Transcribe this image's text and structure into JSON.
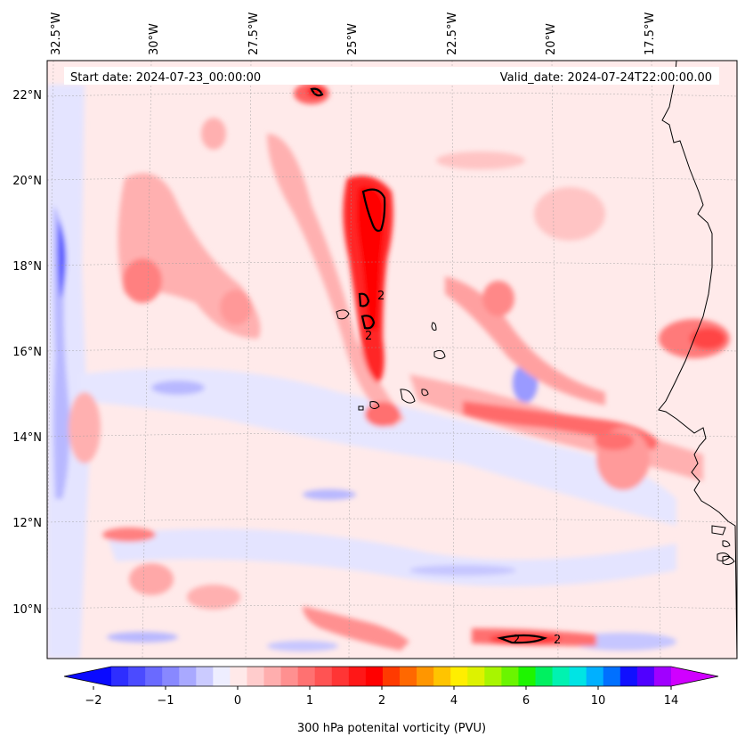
{
  "header": {
    "start_date": "Start date: 2024-07-23_00:00:00",
    "valid_date": "Valid_date: 2024-07-24T22:00:00.00"
  },
  "axes": {
    "longitude_labels": [
      "32.5°W",
      "30°W",
      "27.5°W",
      "25°W",
      "22.5°W",
      "20°W",
      "17.5°W"
    ],
    "latitude_labels": [
      "22°N",
      "20°N",
      "18°N",
      "16°N",
      "14°N",
      "12°N",
      "10°N"
    ]
  },
  "colorbar": {
    "label": "300 hPa potenital vorticity (PVU)",
    "tick_labels": [
      "−2",
      "−1",
      "0",
      "1",
      "2",
      "4",
      "6",
      "10",
      "14"
    ],
    "colors": [
      "#0a0aff",
      "#2e2eff",
      "#4b4bff",
      "#6a6aff",
      "#8888ff",
      "#a9a9ff",
      "#cbcbff",
      "#eeeeff",
      "#ffe9e9",
      "#ffcccc",
      "#ffaeae",
      "#ff9090",
      "#ff7171",
      "#ff5353",
      "#ff3535",
      "#ff1717",
      "#ff0000",
      "#ff3a00",
      "#ff6800",
      "#ff9600",
      "#ffc400",
      "#ffee00",
      "#ddf200",
      "#a8f500",
      "#6af500",
      "#1ef500",
      "#00f060",
      "#00f2b0",
      "#00e4e4",
      "#00b0ff",
      "#0070ff",
      "#1010ff",
      "#5000ff",
      "#a000ff",
      "#d000ff"
    ]
  },
  "contour_label": "2"
}
